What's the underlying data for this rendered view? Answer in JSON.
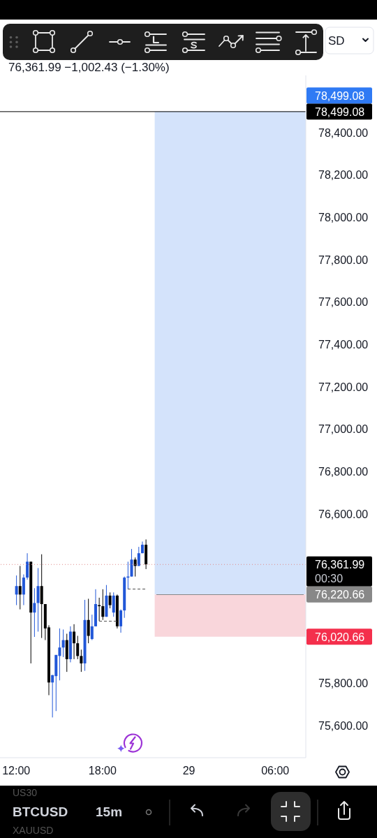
{
  "chart_data": {
    "type": "candlestick",
    "title": "BTCUSD",
    "subtitle": "76,361.99 −1,002.43 (−1.30%)",
    "categories": [
      null,
      null,
      null,
      null,
      "12:00",
      null,
      null,
      null,
      null,
      null,
      null,
      null,
      null,
      null,
      null,
      null,
      null,
      null,
      null,
      null,
      null,
      null,
      null,
      null,
      null,
      null,
      null,
      null,
      "18:00",
      null,
      null,
      null,
      null,
      null,
      null,
      null,
      null,
      null,
      null,
      null,
      null,
      null,
      null,
      null,
      null,
      null,
      null,
      null,
      null,
      null,
      null,
      null,
      "29",
      null,
      null,
      null,
      null,
      null,
      null,
      null,
      null,
      null,
      null,
      null,
      null,
      null,
      null,
      null,
      null,
      null,
      null,
      null,
      null,
      null,
      null,
      null,
      "06:00",
      null,
      null,
      null,
      null,
      null,
      null,
      null,
      null
    ],
    "ohlc": [
      null,
      null,
      null,
      null,
      [
        76220,
        76310,
        76170,
        76260
      ],
      [
        76260,
        76355,
        76150,
        76220
      ],
      [
        76220,
        76315,
        76170,
        76300
      ],
      [
        76300,
        76415,
        76290,
        76375
      ],
      [
        76375,
        76375,
        75895,
        76135
      ],
      [
        76135,
        76250,
        76020,
        76180
      ],
      [
        76180,
        76345,
        76045,
        76260
      ],
      [
        76260,
        76410,
        76015,
        76175
      ],
      [
        76175,
        76175,
        76005,
        76060
      ],
      [
        76065,
        76075,
        75745,
        75805
      ],
      [
        75805,
        75840,
        75640,
        75840
      ],
      [
        75835,
        75935,
        75670,
        75935
      ],
      [
        75930,
        76060,
        75815,
        75970
      ],
      [
        75970,
        76055,
        75925,
        76005
      ],
      [
        76005,
        76035,
        75855,
        75915
      ],
      [
        75915,
        76070,
        75900,
        76045
      ],
      [
        76045,
        76080,
        75915,
        75990
      ],
      [
        75990,
        76025,
        75915,
        75930
      ],
      [
        75930,
        75960,
        75855,
        75895
      ],
      [
        75895,
        76195,
        75860,
        76100
      ],
      [
        76100,
        76200,
        75990,
        76025
      ],
      [
        76010,
        76125,
        76005,
        76070
      ],
      [
        76070,
        76245,
        76070,
        76175
      ],
      [
        76170,
        76205,
        76095,
        76165
      ],
      [
        76165,
        76245,
        76100,
        76115
      ],
      [
        76115,
        76265,
        76115,
        76215
      ],
      [
        76215,
        76230,
        76155,
        76170
      ],
      [
        76135,
        76230,
        76115,
        76215
      ],
      [
        76215,
        76220,
        76060,
        76070
      ],
      [
        76070,
        76150,
        76040,
        76145
      ],
      [
        76145,
        76305,
        76110,
        76300
      ],
      [
        76300,
        76375,
        76245,
        76305
      ],
      [
        76305,
        76435,
        76305,
        76385
      ],
      [
        76385,
        76395,
        76305,
        76355
      ],
      [
        76355,
        76445,
        76355,
        76415
      ],
      [
        76415,
        76470,
        76415,
        76455
      ],
      [
        76455,
        76480,
        76340,
        76361.99
      ],
      null,
      null,
      null,
      null,
      null,
      null,
      null,
      null,
      null,
      null,
      null,
      null,
      null,
      null,
      null,
      null,
      null,
      null,
      null,
      null,
      null,
      null,
      null,
      null,
      null,
      null,
      null,
      null,
      null,
      null,
      null,
      null,
      null,
      null,
      null,
      null,
      null,
      null,
      null,
      null,
      null,
      null,
      null,
      null
    ],
    "colors": [
      null,
      null,
      null,
      null,
      "#2157d8",
      "#000000",
      "#2157d8",
      "#2157d8",
      "#000000",
      "#2157d8",
      "#2157d8",
      "#000000",
      "#000000",
      "#000000",
      "#2157d8",
      "#2157d8",
      "#2157d8",
      "#2157d8",
      "#000000",
      "#2157d8",
      "#000000",
      "#000000",
      "#000000",
      "#2157d8",
      "#000000",
      "#2157d8",
      "#2157d8",
      "#000000",
      "#000000",
      "#2157d8",
      "#000000",
      "#2157d8",
      "#000000",
      "#2157d8",
      "#2157d8",
      "#2157d8",
      "#2157d8",
      "#000000",
      "#2157d8",
      "#2157d8",
      "#000000",
      null,
      null,
      null,
      null,
      null,
      null,
      null,
      null,
      null,
      null,
      null,
      null,
      null,
      null,
      null,
      null,
      null,
      null,
      null,
      null,
      null,
      null,
      null,
      null,
      null,
      null,
      null,
      null,
      null,
      null,
      null,
      null,
      null,
      null,
      null,
      null,
      null,
      null,
      null,
      null,
      null,
      null,
      null,
      null
    ],
    "series": [
      {
        "type": "line",
        "color": "#888888",
        "values": [
          null,
          null,
          null,
          null,
          null,
          null,
          null,
          null,
          null,
          null,
          null,
          null,
          null,
          null,
          null,
          null,
          null,
          null,
          null,
          null,
          null,
          null,
          null,
          null,
          null,
          null,
          null,
          null,
          null,
          null,
          null,
          null,
          null,
          null,
          null,
          null,
          null,
          null,
          null,
          null,
          null,
          null,
          null,
          76220.66,
          76220.66,
          76220.66,
          76220.66,
          76220.66,
          76220.66,
          76220.66,
          76220.66,
          76220.66,
          76220.66,
          76220.66,
          76220.66,
          76220.66,
          76220.66,
          76220.66,
          76220.66,
          76220.66,
          76220.66,
          76220.66,
          76220.66,
          76220.66,
          76220.66,
          76220.66,
          76220.66,
          76220.66,
          76220.66,
          76220.66,
          76220.66,
          76220.66,
          76220.66,
          76220.66,
          76220.66,
          76220.66,
          76220.66,
          76220.66,
          76220.66,
          76220.66,
          76220.66,
          76220.66,
          76220.66,
          76220.66,
          76220.66
        ],
        "value_labels": [
          null,
          null,
          null,
          null,
          null,
          null,
          null,
          null,
          null,
          null,
          null,
          null,
          null,
          null,
          null,
          null,
          null,
          null,
          null,
          null,
          null,
          null,
          null,
          null,
          null,
          null,
          null,
          null,
          null,
          null,
          null,
          null,
          null,
          null,
          null,
          null,
          null,
          null,
          null,
          null,
          null,
          null,
          null,
          null,
          null,
          null,
          null,
          null,
          null,
          null,
          null,
          null,
          null,
          null,
          null,
          null,
          null,
          null,
          null,
          null,
          null,
          null,
          null,
          null,
          null,
          null,
          null,
          null,
          null,
          null,
          null,
          null,
          null,
          null,
          null,
          null,
          null,
          null,
          null,
          null,
          null,
          null,
          null,
          null,
          "76,220.66"
        ]
      },
      {
        "type": "line",
        "color": "#505050",
        "line_style": "dashed",
        "values": [
          null,
          null,
          null,
          null,
          null,
          null,
          null,
          null,
          null,
          null,
          null,
          null,
          null,
          null,
          null,
          null,
          null,
          null,
          null,
          null,
          null,
          null,
          null,
          null,
          null,
          null,
          null,
          76095,
          76095,
          76095,
          76095,
          76095,
          76095,
          null,
          null,
          null,
          null,
          null,
          null,
          null,
          null,
          null,
          null,
          null,
          null,
          null,
          null,
          null,
          null,
          null,
          null,
          null,
          null,
          null,
          null,
          null,
          null,
          null,
          null,
          null,
          null,
          null,
          null,
          null,
          null,
          null,
          null,
          null,
          null,
          null,
          null,
          null,
          null,
          null,
          null,
          null,
          null,
          null,
          null,
          null,
          null,
          null,
          null,
          null,
          null
        ]
      },
      {
        "type": "line",
        "color": "#505050",
        "line_style": "dashed",
        "values": [
          null,
          null,
          null,
          null,
          null,
          null,
          null,
          null,
          null,
          null,
          null,
          null,
          null,
          null,
          null,
          null,
          null,
          null,
          null,
          null,
          null,
          null,
          null,
          null,
          null,
          null,
          null,
          null,
          null,
          null,
          null,
          null,
          null,
          null,
          null,
          76245,
          76245,
          76245,
          76245,
          76245,
          76245,
          null,
          null,
          null,
          null,
          null,
          null,
          null,
          null,
          null,
          null,
          null,
          null,
          null,
          null,
          null,
          null,
          null,
          null,
          null,
          null,
          null,
          null,
          null,
          null,
          null,
          null,
          null,
          null,
          null,
          null,
          null,
          null,
          null,
          null,
          null,
          null,
          null,
          null,
          null,
          null,
          null,
          null,
          null,
          null
        ]
      }
    ],
    "bands": [
      {
        "axis": "y",
        "from": 76220.66,
        "to": 78499.08,
        "label": "78,499.08",
        "color": "#d4e3fb"
      },
      {
        "axis": "y",
        "from": 76220.66,
        "to": 76020.66,
        "label": "76,020.66",
        "color": "#f9d6db"
      }
    ],
    "ylim": [
      75450,
      78670
    ],
    "yticks": [
      {
        "value": 75600,
        "label": "75,600.00"
      },
      {
        "value": 75800,
        "label": "75,800.00"
      },
      {
        "value": 76600,
        "label": "76,600.00"
      },
      {
        "value": 76800,
        "label": "76,800.00"
      },
      {
        "value": 77000,
        "label": "77,000.00"
      },
      {
        "value": 77200,
        "label": "77,200.00"
      },
      {
        "value": 77400,
        "label": "77,400.00"
      },
      {
        "value": 77600,
        "label": "77,600.00"
      },
      {
        "value": 77800,
        "label": "77,800.00"
      },
      {
        "value": 78000,
        "label": "78,000.00"
      },
      {
        "value": 78200,
        "label": "78,200.00"
      },
      {
        "value": 78400,
        "label": "78,400.00"
      }
    ],
    "ref_lines": [
      {
        "axis": "y",
        "value": 76361.99,
        "label": "76,361.99",
        "color": "#e08a8a",
        "line_style": "dotted"
      },
      {
        "axis": "y",
        "value": 78499.08,
        "label": "78,499.08",
        "color": "#000000"
      }
    ],
    "annotations": [
      "00:30",
      "15m",
      "US30",
      "XAUUSD",
      "SD"
    ]
  }
}
